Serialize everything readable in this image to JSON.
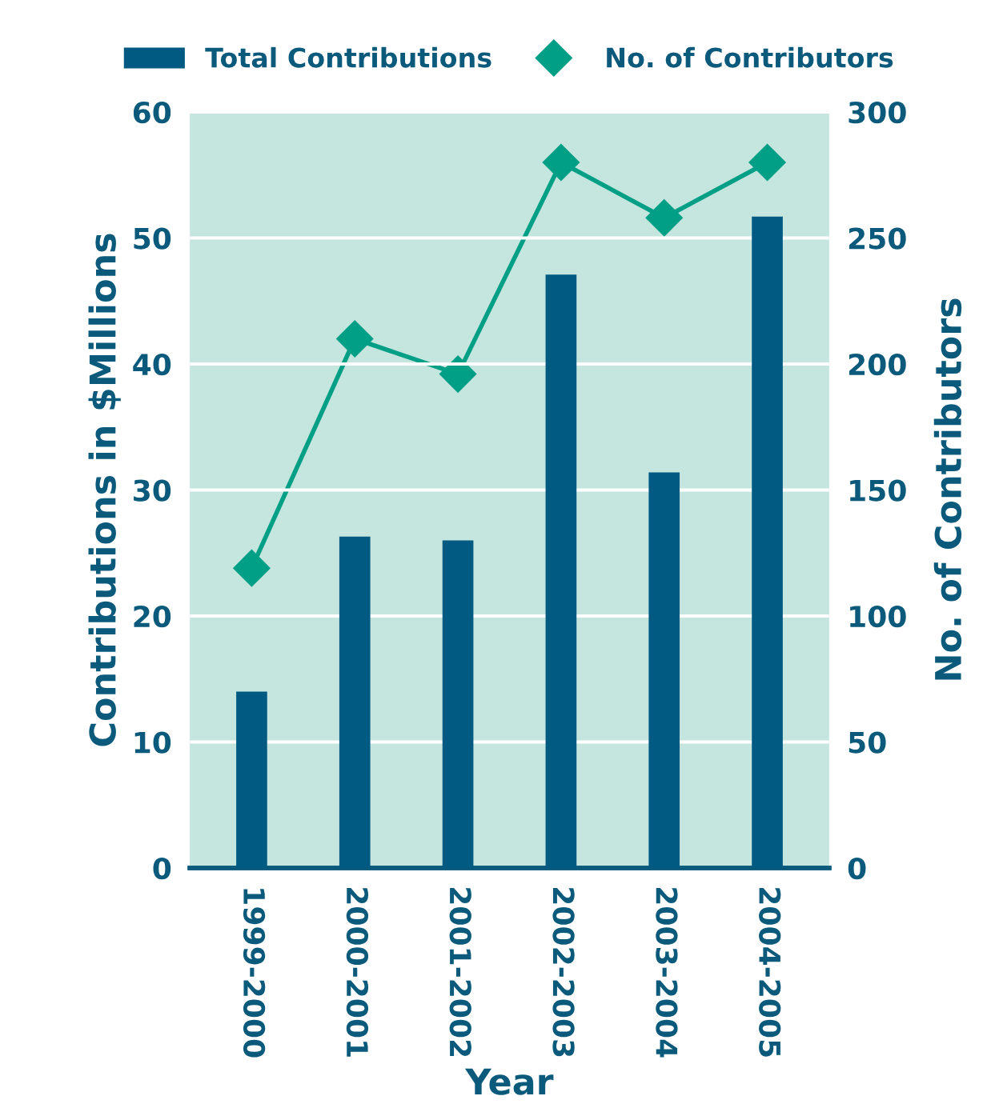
{
  "chart_data": {
    "type": "bar",
    "xlabel": "Year",
    "ylabel": "Contributions in $Millions",
    "y2label": "No. of Contributors",
    "categories": [
      "1999-2000",
      "2000-2001",
      "2001-2002",
      "2002-2003",
      "2003-2004",
      "2004-2005"
    ],
    "series": [
      {
        "name": "Total Contributions",
        "color": "#005a82",
        "values": [
          14.0,
          26.3,
          26.0,
          47.1,
          31.4,
          51.7
        ]
      },
      {
        "name": "No. of Contributors",
        "type": "line",
        "axis": "y2",
        "color": "#009f86",
        "marker": "diamond",
        "values": [
          119,
          210,
          196,
          280,
          258,
          280
        ]
      }
    ],
    "ylim": [
      0,
      60
    ],
    "yticks": [
      0,
      10,
      20,
      30,
      40,
      50,
      60
    ],
    "y2lim": [
      0,
      300
    ],
    "y2ticks": [
      0,
      50,
      100,
      150,
      200,
      250,
      300
    ],
    "grid": "y",
    "legend": "top"
  }
}
